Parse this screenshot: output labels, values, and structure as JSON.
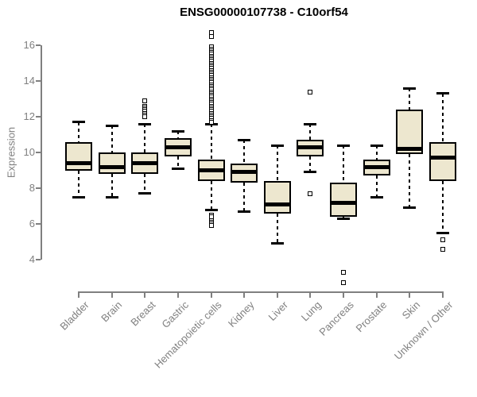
{
  "title": "ENSG00000107738 - C10orf54",
  "colors": {
    "background": "#ffffff",
    "box_fill": "#ede7cf",
    "box_border": "#000000",
    "median": "#000000",
    "whisker": "#000000",
    "axis": "#7f7f7f",
    "tick_label": "#808080",
    "title_color": "#000000"
  },
  "chart_data": {
    "type": "boxplot",
    "title": "ENSG00000107738 - C10orf54",
    "ylabel": "Expression",
    "xlabel": "",
    "ylim": [
      3.4,
      16.9
    ],
    "yticks": [
      4,
      6,
      8,
      10,
      12,
      14,
      16
    ],
    "grid": false,
    "legend": false,
    "categories": [
      "Bladder",
      "Brain",
      "Breast",
      "Gastric",
      "Hematopoietic cells",
      "Kidney",
      "Liver",
      "Lung",
      "Pancreas",
      "Prostate",
      "Skin",
      "Unknown / Other"
    ],
    "series": [
      {
        "category": "Bladder",
        "whisker_low": 7.5,
        "q1": 9.0,
        "median": 9.4,
        "q3": 10.6,
        "whisker_high": 11.7,
        "outliers": []
      },
      {
        "category": "Brain",
        "whisker_low": 7.5,
        "q1": 8.8,
        "median": 9.2,
        "q3": 10.0,
        "whisker_high": 11.5,
        "outliers": []
      },
      {
        "category": "Breast",
        "whisker_low": 7.7,
        "q1": 8.8,
        "median": 9.4,
        "q3": 10.0,
        "whisker_high": 11.6,
        "outliers": [
          12.9,
          12.6,
          12.5,
          12.4,
          12.3,
          12.2,
          12.1,
          12.0
        ]
      },
      {
        "category": "Gastric",
        "whisker_low": 9.1,
        "q1": 9.8,
        "median": 10.3,
        "q3": 10.8,
        "whisker_high": 11.2,
        "outliers": []
      },
      {
        "category": "Hematopoietic cells",
        "whisker_low": 6.8,
        "q1": 8.4,
        "median": 9.0,
        "q3": 9.6,
        "whisker_high": 11.6,
        "outliers": [
          16.7,
          16.5,
          15.9,
          15.8,
          15.7,
          15.6,
          15.5,
          15.4,
          15.3,
          15.2,
          15.1,
          15.0,
          14.9,
          14.8,
          14.7,
          14.6,
          14.5,
          14.4,
          14.3,
          14.2,
          14.1,
          14.0,
          13.9,
          13.8,
          13.7,
          13.6,
          13.5,
          13.4,
          13.3,
          13.2,
          13.1,
          13.0,
          12.9,
          12.8,
          12.7,
          12.6,
          12.5,
          12.4,
          12.3,
          12.2,
          12.1,
          12.0,
          11.9,
          11.8,
          11.7,
          6.5,
          6.4,
          6.2,
          6.1,
          6.0,
          5.9
        ]
      },
      {
        "category": "Kidney",
        "whisker_low": 6.7,
        "q1": 8.3,
        "median": 8.9,
        "q3": 9.4,
        "whisker_high": 10.7,
        "outliers": []
      },
      {
        "category": "Liver",
        "whisker_low": 4.9,
        "q1": 6.6,
        "median": 7.1,
        "q3": 8.4,
        "whisker_high": 10.4,
        "outliers": []
      },
      {
        "category": "Lung",
        "whisker_low": 8.9,
        "q1": 9.8,
        "median": 10.3,
        "q3": 10.7,
        "whisker_high": 11.6,
        "outliers": [
          13.4,
          7.7
        ]
      },
      {
        "category": "Pancreas",
        "whisker_low": 6.3,
        "q1": 6.4,
        "median": 7.2,
        "q3": 8.3,
        "whisker_high": 10.4,
        "outliers": [
          3.3,
          2.7
        ]
      },
      {
        "category": "Prostate",
        "whisker_low": 7.5,
        "q1": 8.7,
        "median": 9.2,
        "q3": 9.6,
        "whisker_high": 10.4,
        "outliers": []
      },
      {
        "category": "Skin",
        "whisker_low": 6.9,
        "q1": 9.9,
        "median": 10.2,
        "q3": 12.4,
        "whisker_high": 13.6,
        "outliers": []
      },
      {
        "category": "Unknown / Other",
        "whisker_low": 5.5,
        "q1": 8.4,
        "median": 9.7,
        "q3": 10.6,
        "whisker_high": 13.3,
        "outliers": [
          5.1,
          4.6
        ]
      }
    ]
  }
}
